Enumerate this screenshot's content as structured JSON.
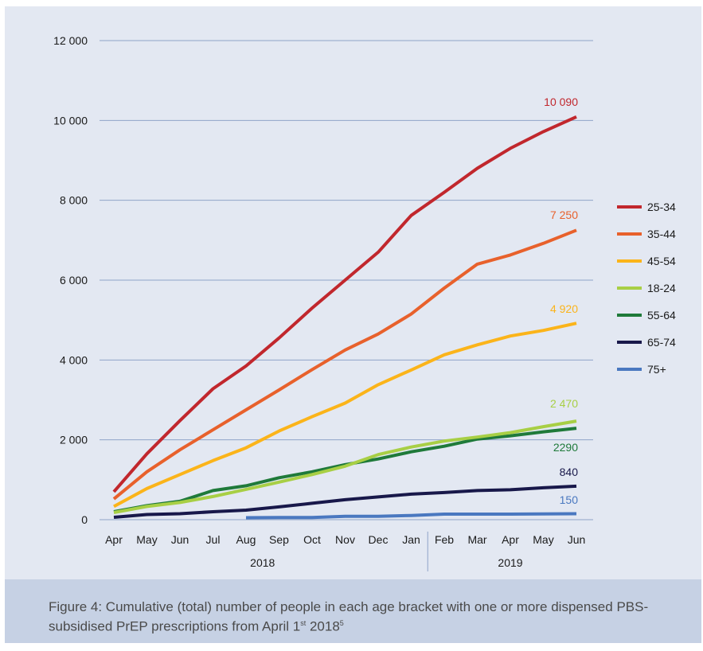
{
  "chart_data": {
    "type": "line",
    "title": "",
    "xlabel": "",
    "ylabel": "",
    "ylim": [
      0,
      12000
    ],
    "y_ticks": [
      0,
      2000,
      4000,
      6000,
      8000,
      10000,
      12000
    ],
    "y_tick_labels": [
      "0",
      "2 000",
      "4 000",
      "6 000",
      "8 000",
      "10 000",
      "12 000"
    ],
    "grid": "horizontal",
    "legend_placement": "right",
    "categories": [
      "Apr",
      "May",
      "Jun",
      "Jul",
      "Aug",
      "Sep",
      "Oct",
      "Nov",
      "Dec",
      "Jan",
      "Feb",
      "Mar",
      "Apr",
      "May",
      "Jun"
    ],
    "year_groups": [
      {
        "label": "2018",
        "start": 0,
        "end": 9
      },
      {
        "label": "2019",
        "start": 10,
        "end": 14
      }
    ],
    "series": [
      {
        "name": "25-34",
        "color": "#c1272d",
        "values": [
          700,
          1650,
          2480,
          3280,
          3850,
          4550,
          5300,
          6000,
          6700,
          7620,
          8200,
          8800,
          9300,
          9720,
          10090
        ],
        "end_label": "10 090"
      },
      {
        "name": "35-44",
        "color": "#e8612c",
        "values": [
          520,
          1200,
          1750,
          2250,
          2750,
          3250,
          3760,
          4250,
          4650,
          5150,
          5800,
          6400,
          6630,
          6920,
          7250
        ],
        "end_label": "7 250"
      },
      {
        "name": "45-54",
        "color": "#fbb41a",
        "values": [
          330,
          780,
          1130,
          1480,
          1800,
          2220,
          2580,
          2920,
          3380,
          3750,
          4130,
          4380,
          4600,
          4740,
          4920
        ],
        "end_label": "4 920"
      },
      {
        "name": "18-24",
        "color": "#a8cf45",
        "values": [
          180,
          330,
          430,
          580,
          760,
          940,
          1130,
          1340,
          1630,
          1820,
          1970,
          2070,
          2180,
          2330,
          2470
        ],
        "end_label": "2 470"
      },
      {
        "name": "55-64",
        "color": "#1f7a3a",
        "values": [
          200,
          350,
          460,
          730,
          850,
          1050,
          1200,
          1380,
          1520,
          1700,
          1840,
          2020,
          2100,
          2200,
          2290
        ],
        "end_label": "2290"
      },
      {
        "name": "65-74",
        "color": "#18184a",
        "values": [
          60,
          130,
          150,
          200,
          240,
          320,
          410,
          500,
          570,
          640,
          680,
          730,
          750,
          800,
          840
        ],
        "end_label": "840"
      },
      {
        "name": "75+",
        "color": "#4a78c0",
        "values": [
          null,
          null,
          null,
          null,
          50,
          55,
          55,
          85,
          85,
          105,
          140,
          140,
          140,
          145,
          150
        ],
        "end_label": "150"
      }
    ]
  },
  "caption": "Figure 4: Cumulative (total) number of people in each age bracket with one or more dispensed PBS-subsidised PrEP prescriptions from April 1st 20185"
}
